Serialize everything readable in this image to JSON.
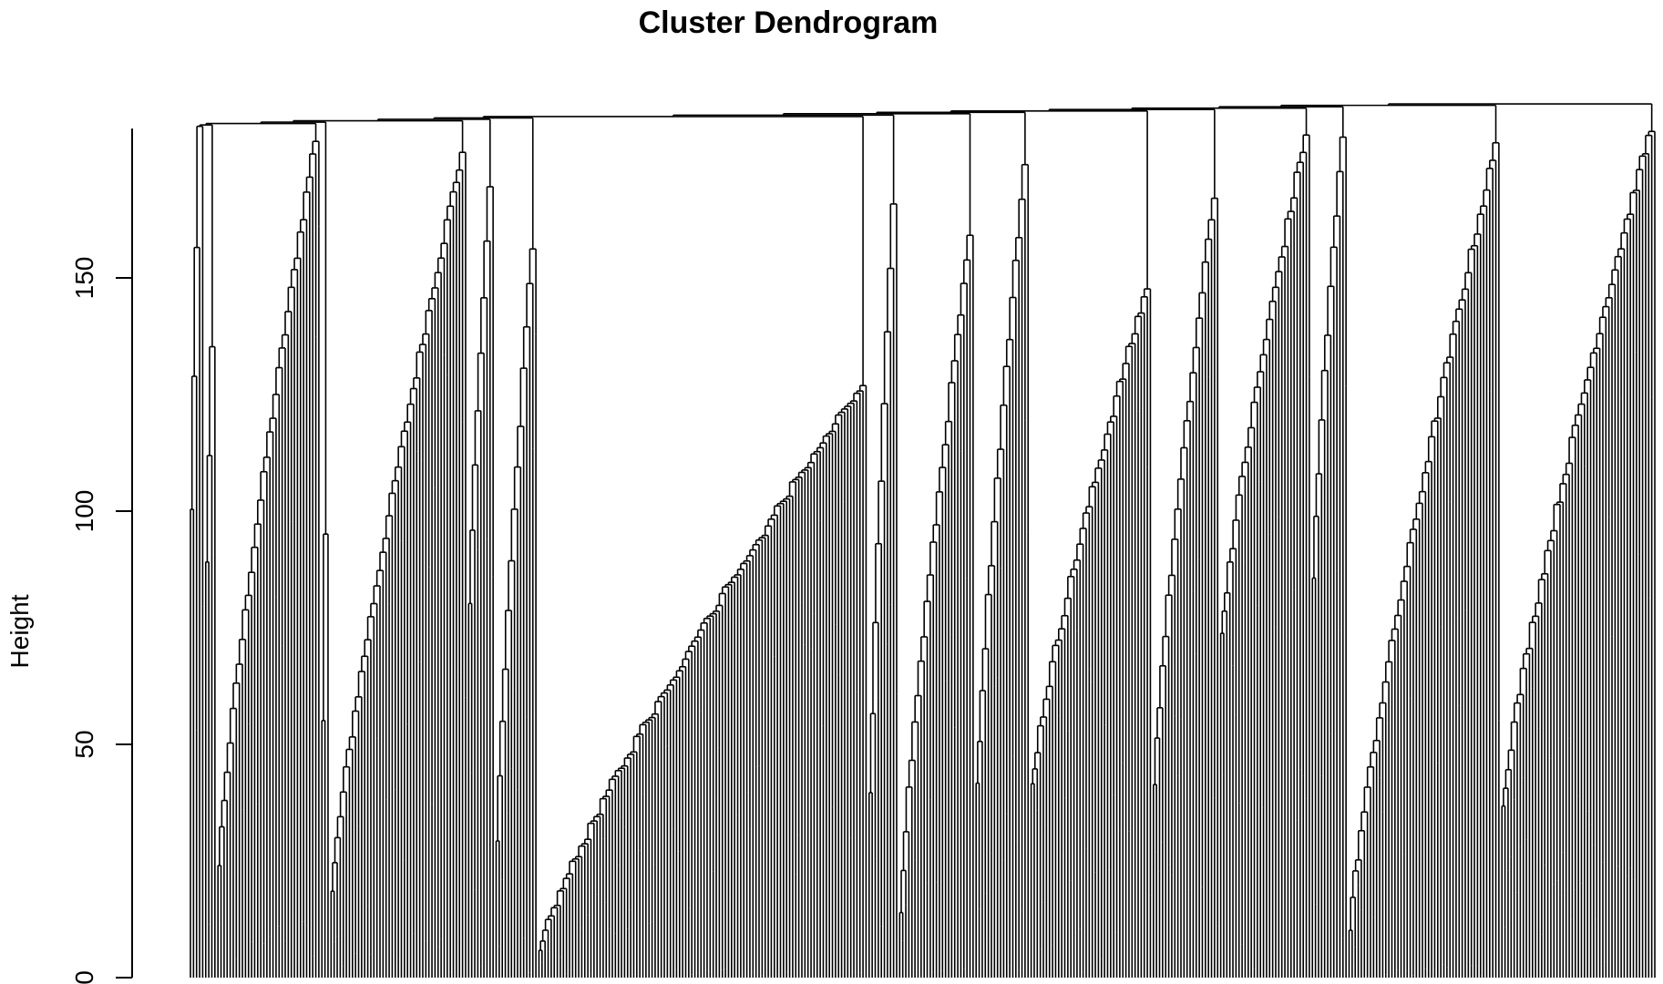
{
  "chart_data": {
    "type": "dendrogram",
    "title": "Cluster Dendrogram",
    "ylabel": "Height",
    "xlabel": "",
    "ylim": [
      0,
      182
    ],
    "yticks": [
      0,
      50,
      100,
      150
    ],
    "ytick_labels": [
      "0",
      "50",
      "100",
      "150"
    ],
    "n_leaves": 480,
    "root_height": 182,
    "line_color": "#000000",
    "background": "#ffffff",
    "clusters": [
      {
        "leaves": 5,
        "top": 182,
        "min": 60,
        "max": 181
      },
      {
        "leaves": 4,
        "top": 181,
        "min": 55,
        "max": 135
      },
      {
        "leaves": 34,
        "top": 180,
        "min": 14,
        "max": 180
      },
      {
        "leaves": 3,
        "top": 95,
        "min": 2,
        "max": 94
      },
      {
        "leaves": 45,
        "top": 180,
        "min": 10,
        "max": 177
      },
      {
        "leaves": 9,
        "top": 172,
        "min": 58,
        "max": 170
      },
      {
        "leaves": 14,
        "top": 180,
        "min": 10,
        "max": 157
      },
      {
        "leaves": 108,
        "top": 127,
        "min": 2,
        "max": 127
      },
      {
        "leaves": 10,
        "top": 181,
        "min": 12,
        "max": 165
      },
      {
        "leaves": 25,
        "top": 159,
        "min": 3,
        "max": 158
      },
      {
        "leaves": 18,
        "top": 175,
        "min": 25,
        "max": 174
      },
      {
        "leaves": 40,
        "top": 150,
        "min": 35,
        "max": 148
      },
      {
        "leaves": 22,
        "top": 170,
        "min": 30,
        "max": 168
      },
      {
        "leaves": 30,
        "top": 181,
        "min": 65,
        "max": 181
      },
      {
        "leaves": 12,
        "top": 181,
        "min": 70,
        "max": 181
      },
      {
        "leaves": 50,
        "top": 180,
        "min": 3,
        "max": 178
      },
      {
        "leaves": 51,
        "top": 182,
        "min": 30,
        "max": 182
      }
    ]
  }
}
